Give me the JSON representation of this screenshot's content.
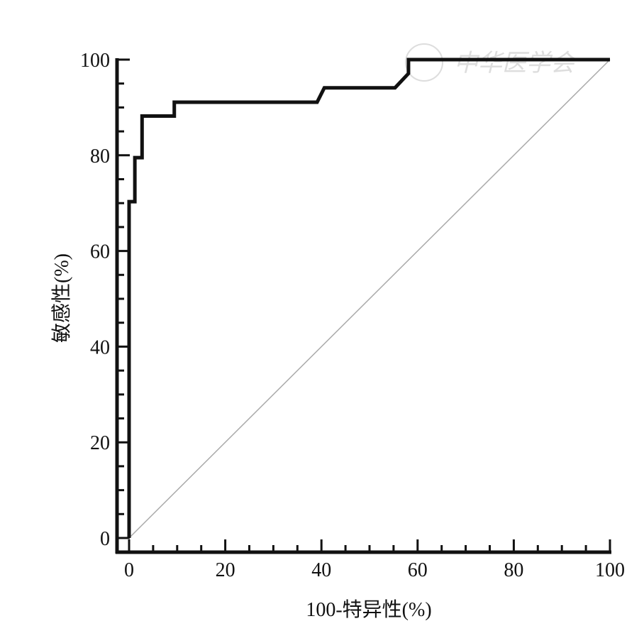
{
  "chart_data": {
    "type": "line",
    "title": "",
    "xlabel": "100-特异性(%)",
    "ylabel": "敏感性(%)",
    "xlim": [
      0,
      100
    ],
    "ylim": [
      0,
      100
    ],
    "x_ticks": [
      0,
      20,
      40,
      60,
      80,
      100
    ],
    "y_ticks": [
      0,
      20,
      40,
      60,
      80,
      100
    ],
    "minor_tick_step": 5,
    "grid": false,
    "series": [
      {
        "style": "solid-thick",
        "color": "#111111",
        "points": [
          [
            0,
            0
          ],
          [
            0,
            70.3
          ],
          [
            1.2,
            70.3
          ],
          [
            1.2,
            79.5
          ],
          [
            2.7,
            79.5
          ],
          [
            2.7,
            88.2
          ],
          [
            9.4,
            88.2
          ],
          [
            9.4,
            91.1
          ],
          [
            39.1,
            91.1
          ],
          [
            40.6,
            94.1
          ],
          [
            55.3,
            94.1
          ],
          [
            58.1,
            97.1
          ],
          [
            58.1,
            100
          ],
          [
            100,
            100
          ]
        ]
      },
      {
        "style": "reference-diagonal",
        "color": "#aaaaaa",
        "points": [
          [
            0,
            0
          ],
          [
            100,
            100
          ]
        ]
      }
    ],
    "watermark": "中华医学会"
  }
}
